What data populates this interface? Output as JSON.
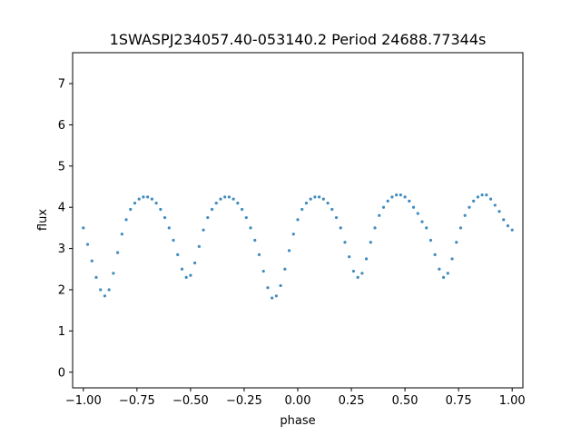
{
  "chart_data": {
    "type": "scatter",
    "title": "1SWASPJ234057.40-053140.2 Period 24688.77344s",
    "xlabel": "phase",
    "ylabel": "flux",
    "xlim": [
      -1.05,
      1.05
    ],
    "ylim": [
      -0.38,
      7.75
    ],
    "xticks": [
      -1.0,
      -0.75,
      -0.5,
      -0.25,
      0.0,
      0.25,
      0.5,
      0.75,
      1.0
    ],
    "xtick_labels": [
      "−1.00",
      "−0.75",
      "−0.50",
      "−0.25",
      "0.00",
      "0.25",
      "0.50",
      "0.75",
      "1.00"
    ],
    "yticks": [
      0,
      1,
      2,
      3,
      4,
      5,
      6,
      7
    ],
    "ytick_labels": [
      "0",
      "1",
      "2",
      "3",
      "4",
      "5",
      "6",
      "7"
    ],
    "grid": false,
    "point_color": "#1f77b4",
    "series": [
      {
        "x": [
          -1.0,
          -0.98,
          -0.96,
          -0.94,
          -0.92,
          -0.9,
          -0.88,
          -0.86,
          -0.84,
          -0.82,
          -0.8,
          -0.78,
          -0.76,
          -0.74,
          -0.72,
          -0.7,
          -0.68,
          -0.66,
          -0.64,
          -0.62,
          -0.6,
          -0.58,
          -0.56,
          -0.54,
          -0.52,
          -0.5,
          -0.48,
          -0.46,
          -0.44,
          -0.42,
          -0.4,
          -0.38,
          -0.36,
          -0.34,
          -0.32,
          -0.3,
          -0.28,
          -0.26,
          -0.24,
          -0.22,
          -0.2,
          -0.18,
          -0.16,
          -0.14,
          -0.12,
          -0.1,
          -0.08,
          -0.06,
          -0.04,
          -0.02,
          0.0,
          0.02,
          0.04,
          0.06,
          0.08,
          0.1,
          0.12,
          0.14,
          0.16,
          0.18,
          0.2,
          0.22,
          0.24,
          0.26,
          0.28,
          0.3,
          0.32,
          0.34,
          0.36,
          0.38,
          0.4,
          0.42,
          0.44,
          0.46,
          0.48,
          0.5,
          0.52,
          0.54,
          0.56,
          0.58,
          0.6,
          0.62,
          0.64,
          0.66,
          0.68,
          0.7,
          0.72,
          0.74,
          0.76,
          0.78,
          0.8,
          0.82,
          0.84,
          0.86,
          0.88,
          0.9,
          0.92,
          0.94,
          0.96,
          0.98,
          1.0
        ],
        "y": [
          3.5,
          3.1,
          2.7,
          2.3,
          2.0,
          1.85,
          2.0,
          2.4,
          2.9,
          3.35,
          3.7,
          3.95,
          4.1,
          4.2,
          4.25,
          4.25,
          4.2,
          4.1,
          3.95,
          3.75,
          3.5,
          3.2,
          2.85,
          2.5,
          2.3,
          2.35,
          2.65,
          3.05,
          3.45,
          3.75,
          3.95,
          4.1,
          4.2,
          4.25,
          4.25,
          4.2,
          4.1,
          3.95,
          3.75,
          3.5,
          3.2,
          2.85,
          2.45,
          2.05,
          1.8,
          1.85,
          2.1,
          2.5,
          2.95,
          3.35,
          3.7,
          3.95,
          4.1,
          4.2,
          4.25,
          4.25,
          4.2,
          4.1,
          3.95,
          3.75,
          3.5,
          3.15,
          2.8,
          2.45,
          2.3,
          2.4,
          2.75,
          3.15,
          3.5,
          3.8,
          4.0,
          4.15,
          4.25,
          4.3,
          4.3,
          4.25,
          4.15,
          4.0,
          3.85,
          3.65,
          3.5,
          3.2,
          2.85,
          2.5,
          2.3,
          2.4,
          2.75,
          3.15,
          3.5,
          3.8,
          4.0,
          4.15,
          4.25,
          4.3,
          4.3,
          4.2,
          4.05,
          3.9,
          3.7,
          3.55,
          3.45
        ]
      }
    ]
  }
}
